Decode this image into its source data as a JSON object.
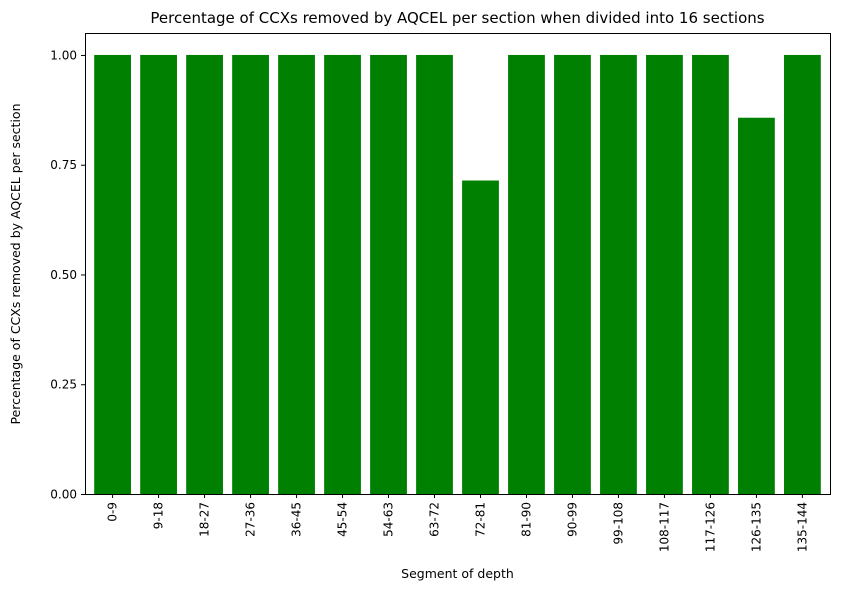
{
  "chart_data": {
    "type": "bar",
    "title": "Percentage of CCXs removed by AQCEL per section when divided into 16 sections",
    "xlabel": "Segment of depth",
    "ylabel": "Percentage of CCXs removed by AQCEL per section",
    "categories": [
      "0-9",
      "9-18",
      "18-27",
      "27-36",
      "36-45",
      "45-54",
      "54-63",
      "63-72",
      "72-81",
      "81-90",
      "90-99",
      "99-108",
      "108-117",
      "117-126",
      "126-135",
      "135-144"
    ],
    "values": [
      1.0,
      1.0,
      1.0,
      1.0,
      1.0,
      1.0,
      1.0,
      1.0,
      0.714,
      1.0,
      1.0,
      1.0,
      1.0,
      1.0,
      0.857,
      1.0
    ],
    "ylim": [
      0,
      1.05
    ],
    "yticks": [
      "0.00",
      "0.25",
      "0.50",
      "0.75",
      "1.00"
    ],
    "bar_color": "#008000",
    "grid": false,
    "legend": "none"
  }
}
